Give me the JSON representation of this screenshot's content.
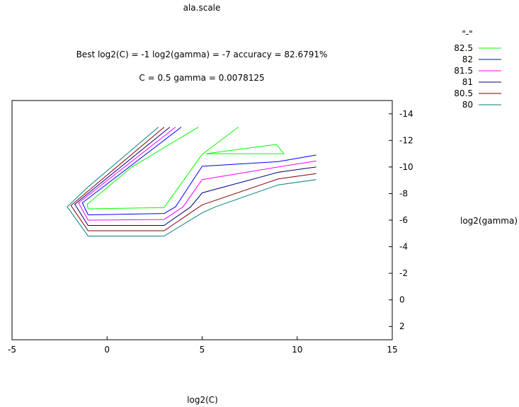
{
  "chart_data": {
    "type": "line",
    "title": "ala.scale",
    "subtitle_lines": [
      "Best log2(C) = -1  log2(gamma) = -7  accuracy = 82.6791%",
      "C = 0.5  gamma = 0.0078125"
    ],
    "xlabel": "log2(C)",
    "ylabel": "log2(gamma)",
    "xlim": [
      -5,
      15
    ],
    "ylim": [
      3,
      -15
    ],
    "x_ticks": [
      "-5",
      "0",
      "5",
      "10",
      "15"
    ],
    "y_ticks": [
      "-14",
      "-12",
      "-10",
      "-8",
      "-6",
      "-4",
      "-2",
      "0",
      "2"
    ],
    "legend_title": "\"-\"",
    "legend_position": "top-right, outside plot",
    "series": [
      {
        "name": "82.5",
        "color": "#00ff00",
        "segments": [
          [
            [
              -1,
              -6.85
            ],
            [
              3,
              -6.95
            ],
            [
              5,
              -10.95
            ],
            [
              6.9,
              -13.0
            ]
          ],
          [
            [
              -1,
              -6.85
            ],
            [
              -1.05,
              -7.2
            ],
            [
              1.3,
              -10.0
            ],
            [
              4.8,
              -13.0
            ]
          ],
          [
            [
              5.2,
              -11.0
            ],
            [
              8.9,
              -11.7
            ],
            [
              9.3,
              -11.0
            ],
            [
              5.2,
              -11.0
            ]
          ]
        ]
      },
      {
        "name": "82",
        "color": "#0000ff",
        "segments": [
          [
            [
              11,
              -10.9
            ],
            [
              9,
              -10.4
            ],
            [
              5,
              -10.05
            ],
            [
              3.6,
              -7.0
            ],
            [
              3,
              -6.5
            ],
            [
              -1,
              -6.4
            ],
            [
              -1.3,
              -7.3
            ],
            [
              3.9,
              -13.0
            ]
          ]
        ]
      },
      {
        "name": "81.5",
        "color": "#ff00ff",
        "segments": [
          [
            [
              11,
              -10.45
            ],
            [
              9,
              -10.0
            ],
            [
              5,
              -9.05
            ],
            [
              4.0,
              -7.0
            ],
            [
              3,
              -6.05
            ],
            [
              -1,
              -6.0
            ],
            [
              -1.5,
              -7.3
            ],
            [
              3.6,
              -13.0
            ]
          ]
        ]
      },
      {
        "name": "81",
        "color": "#000080",
        "segments": [
          [
            [
              11,
              -10.0
            ],
            [
              9,
              -9.6
            ],
            [
              5,
              -8.05
            ],
            [
              4.4,
              -7.0
            ],
            [
              3,
              -5.6
            ],
            [
              -1,
              -5.6
            ],
            [
              -1.7,
              -7.2
            ],
            [
              3.3,
              -13.0
            ]
          ]
        ]
      },
      {
        "name": "80.5",
        "color": "#800000",
        "segments": [
          [
            [
              11,
              -9.5
            ],
            [
              9,
              -9.1
            ],
            [
              5,
              -7.15
            ],
            [
              3,
              -5.2
            ],
            [
              -1,
              -5.2
            ],
            [
              -1.9,
              -7.1
            ],
            [
              3.0,
              -13.0
            ]
          ]
        ]
      },
      {
        "name": "80",
        "color": "#008080",
        "segments": [
          [
            [
              11,
              -9.05
            ],
            [
              9,
              -8.65
            ],
            [
              5.7,
              -7.0
            ],
            [
              5,
              -6.55
            ],
            [
              3,
              -4.8
            ],
            [
              -1,
              -4.8
            ],
            [
              -2.1,
              -7.0
            ],
            [
              -1,
              -8.5
            ],
            [
              2.7,
              -13.0
            ]
          ]
        ]
      }
    ]
  }
}
